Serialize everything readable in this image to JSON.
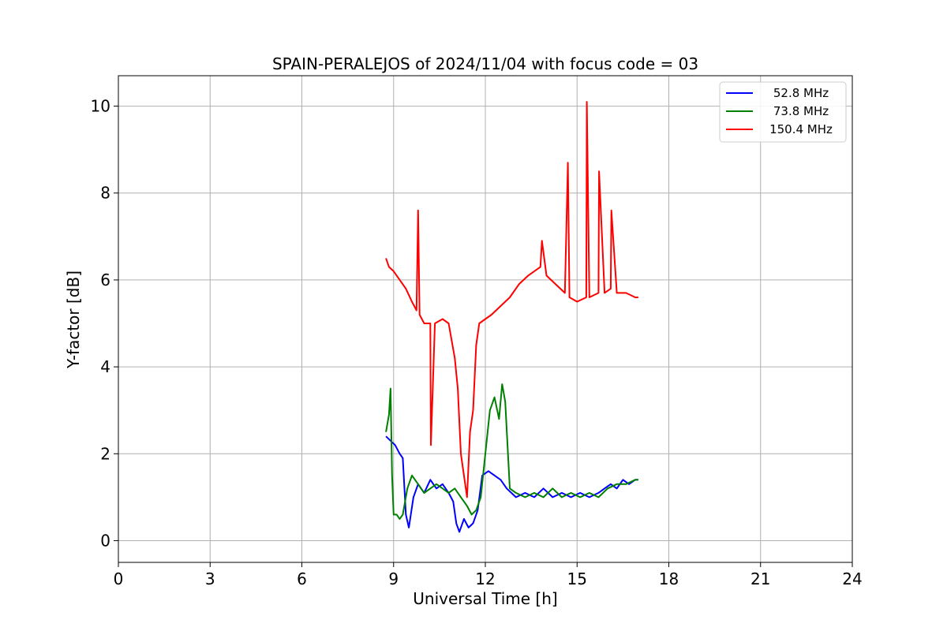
{
  "chart_data": {
    "type": "line",
    "title": "SPAIN-PERALEJOS of 2024/11/04 with focus code = 03",
    "xlabel": "Universal Time [h]",
    "ylabel": "Y-factor [dB]",
    "xlim": [
      0,
      24
    ],
    "ylim": [
      -0.5,
      10.7
    ],
    "xticks": [
      0,
      3,
      6,
      9,
      12,
      15,
      18,
      21,
      24
    ],
    "yticks": [
      0,
      2,
      4,
      6,
      8,
      10
    ],
    "grid": true,
    "legend_position": "top-right",
    "series": [
      {
        "name": "52.8 MHz",
        "color": "#0000ff",
        "x": [
          8.75,
          8.9,
          9.05,
          9.2,
          9.3,
          9.4,
          9.5,
          9.65,
          9.8,
          10.0,
          10.2,
          10.4,
          10.6,
          10.8,
          10.95,
          11.05,
          11.15,
          11.3,
          11.45,
          11.6,
          11.75,
          11.9,
          12.1,
          12.3,
          12.5,
          12.7,
          13.0,
          13.3,
          13.6,
          13.9,
          14.2,
          14.5,
          14.8,
          15.1,
          15.4,
          15.7,
          15.9,
          16.1,
          16.3,
          16.5,
          16.7,
          16.9,
          17.0
        ],
        "values": [
          2.4,
          2.3,
          2.2,
          2.0,
          1.9,
          0.6,
          0.3,
          1.0,
          1.3,
          1.1,
          1.4,
          1.2,
          1.3,
          1.1,
          0.9,
          0.4,
          0.2,
          0.5,
          0.3,
          0.4,
          0.7,
          1.5,
          1.6,
          1.5,
          1.4,
          1.2,
          1.0,
          1.1,
          1.0,
          1.2,
          1.0,
          1.1,
          1.0,
          1.1,
          1.0,
          1.1,
          1.2,
          1.3,
          1.2,
          1.4,
          1.3,
          1.4,
          1.4
        ]
      },
      {
        "name": "73.8 MHz",
        "color": "#008000",
        "x": [
          8.75,
          8.85,
          8.9,
          8.95,
          9.0,
          9.1,
          9.2,
          9.3,
          9.45,
          9.6,
          9.8,
          10.0,
          10.2,
          10.4,
          10.6,
          10.8,
          11.0,
          11.2,
          11.4,
          11.55,
          11.7,
          11.85,
          12.0,
          12.15,
          12.3,
          12.45,
          12.55,
          12.65,
          12.8,
          13.0,
          13.3,
          13.6,
          13.9,
          14.2,
          14.5,
          14.8,
          15.1,
          15.4,
          15.7,
          16.0,
          16.3,
          16.6,
          16.9,
          17.0
        ],
        "values": [
          2.5,
          2.9,
          3.5,
          1.5,
          0.6,
          0.6,
          0.5,
          0.6,
          1.2,
          1.5,
          1.3,
          1.1,
          1.2,
          1.3,
          1.2,
          1.1,
          1.2,
          1.0,
          0.8,
          0.6,
          0.7,
          1.0,
          2.0,
          3.0,
          3.3,
          2.8,
          3.6,
          3.2,
          1.2,
          1.1,
          1.0,
          1.1,
          1.0,
          1.2,
          1.0,
          1.1,
          1.0,
          1.1,
          1.0,
          1.2,
          1.3,
          1.3,
          1.4,
          1.4
        ]
      },
      {
        "name": "150.4 MHz",
        "color": "#ff0000",
        "x": [
          8.75,
          8.85,
          9.0,
          9.2,
          9.4,
          9.6,
          9.75,
          9.8,
          9.85,
          10.0,
          10.2,
          10.22,
          10.35,
          10.6,
          10.8,
          11.0,
          11.1,
          11.2,
          11.3,
          11.4,
          11.5,
          11.6,
          11.7,
          11.8,
          12.0,
          12.2,
          12.5,
          12.8,
          13.1,
          13.4,
          13.6,
          13.8,
          13.85,
          14.0,
          14.3,
          14.6,
          14.7,
          14.75,
          15.0,
          15.3,
          15.32,
          15.4,
          15.7,
          15.72,
          15.9,
          16.1,
          16.12,
          16.3,
          16.6,
          16.9,
          17.0
        ],
        "values": [
          6.5,
          6.3,
          6.2,
          6.0,
          5.8,
          5.5,
          5.3,
          7.6,
          5.2,
          5.0,
          5.0,
          2.2,
          5.0,
          5.1,
          5.0,
          4.2,
          3.5,
          2.0,
          1.5,
          1.0,
          2.5,
          3.0,
          4.5,
          5.0,
          5.1,
          5.2,
          5.4,
          5.6,
          5.9,
          6.1,
          6.2,
          6.3,
          6.9,
          6.1,
          5.9,
          5.7,
          8.7,
          5.6,
          5.5,
          5.6,
          10.1,
          5.6,
          5.7,
          8.5,
          5.7,
          5.8,
          7.6,
          5.7,
          5.7,
          5.6,
          5.6
        ]
      }
    ]
  }
}
